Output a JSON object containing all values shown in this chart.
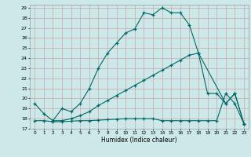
{
  "xlabel": "Humidex (Indice chaleur)",
  "xlim": [
    -0.5,
    23.5
  ],
  "ylim": [
    17,
    29.3
  ],
  "yticks": [
    17,
    18,
    19,
    20,
    21,
    22,
    23,
    24,
    25,
    26,
    27,
    28,
    29
  ],
  "xticks": [
    0,
    1,
    2,
    3,
    4,
    5,
    6,
    7,
    8,
    9,
    10,
    11,
    12,
    13,
    14,
    15,
    16,
    17,
    18,
    19,
    20,
    21,
    22,
    23
  ],
  "bg_color": "#cce8e8",
  "grid_color": "#b8d4d4",
  "line_color": "#006868",
  "line1_x": [
    0,
    1,
    2,
    3,
    4,
    5,
    6,
    7,
    8,
    9,
    10,
    11,
    12,
    13,
    14,
    15,
    16,
    17,
    18,
    21,
    22,
    23
  ],
  "line1_y": [
    19.5,
    18.5,
    17.8,
    19.0,
    18.7,
    19.5,
    21.0,
    23.0,
    24.5,
    25.5,
    26.5,
    26.9,
    28.5,
    28.3,
    29.0,
    28.5,
    28.5,
    27.3,
    24.5,
    19.5,
    20.5,
    17.5
  ],
  "line2_x": [
    2,
    3,
    4,
    5,
    6,
    7,
    8,
    9,
    10,
    11,
    12,
    13,
    14,
    15,
    16,
    17,
    18,
    19,
    20,
    21,
    22,
    23
  ],
  "line2_y": [
    17.8,
    17.8,
    18.0,
    18.3,
    18.7,
    19.3,
    19.8,
    20.3,
    20.8,
    21.3,
    21.8,
    22.3,
    22.8,
    23.3,
    23.8,
    24.3,
    24.5,
    20.5,
    20.5,
    19.5,
    20.5,
    17.5
  ],
  "line3_x": [
    0,
    1,
    2,
    3,
    4,
    5,
    6,
    7,
    8,
    9,
    10,
    11,
    12,
    13,
    14,
    15,
    16,
    17,
    18,
    19,
    20,
    21,
    22,
    23
  ],
  "line3_y": [
    17.8,
    17.8,
    17.7,
    17.7,
    17.75,
    17.8,
    17.8,
    17.85,
    17.9,
    17.95,
    18.0,
    18.0,
    18.0,
    18.0,
    17.8,
    17.8,
    17.8,
    17.8,
    17.8,
    17.8,
    17.8,
    20.5,
    19.5,
    17.5
  ]
}
